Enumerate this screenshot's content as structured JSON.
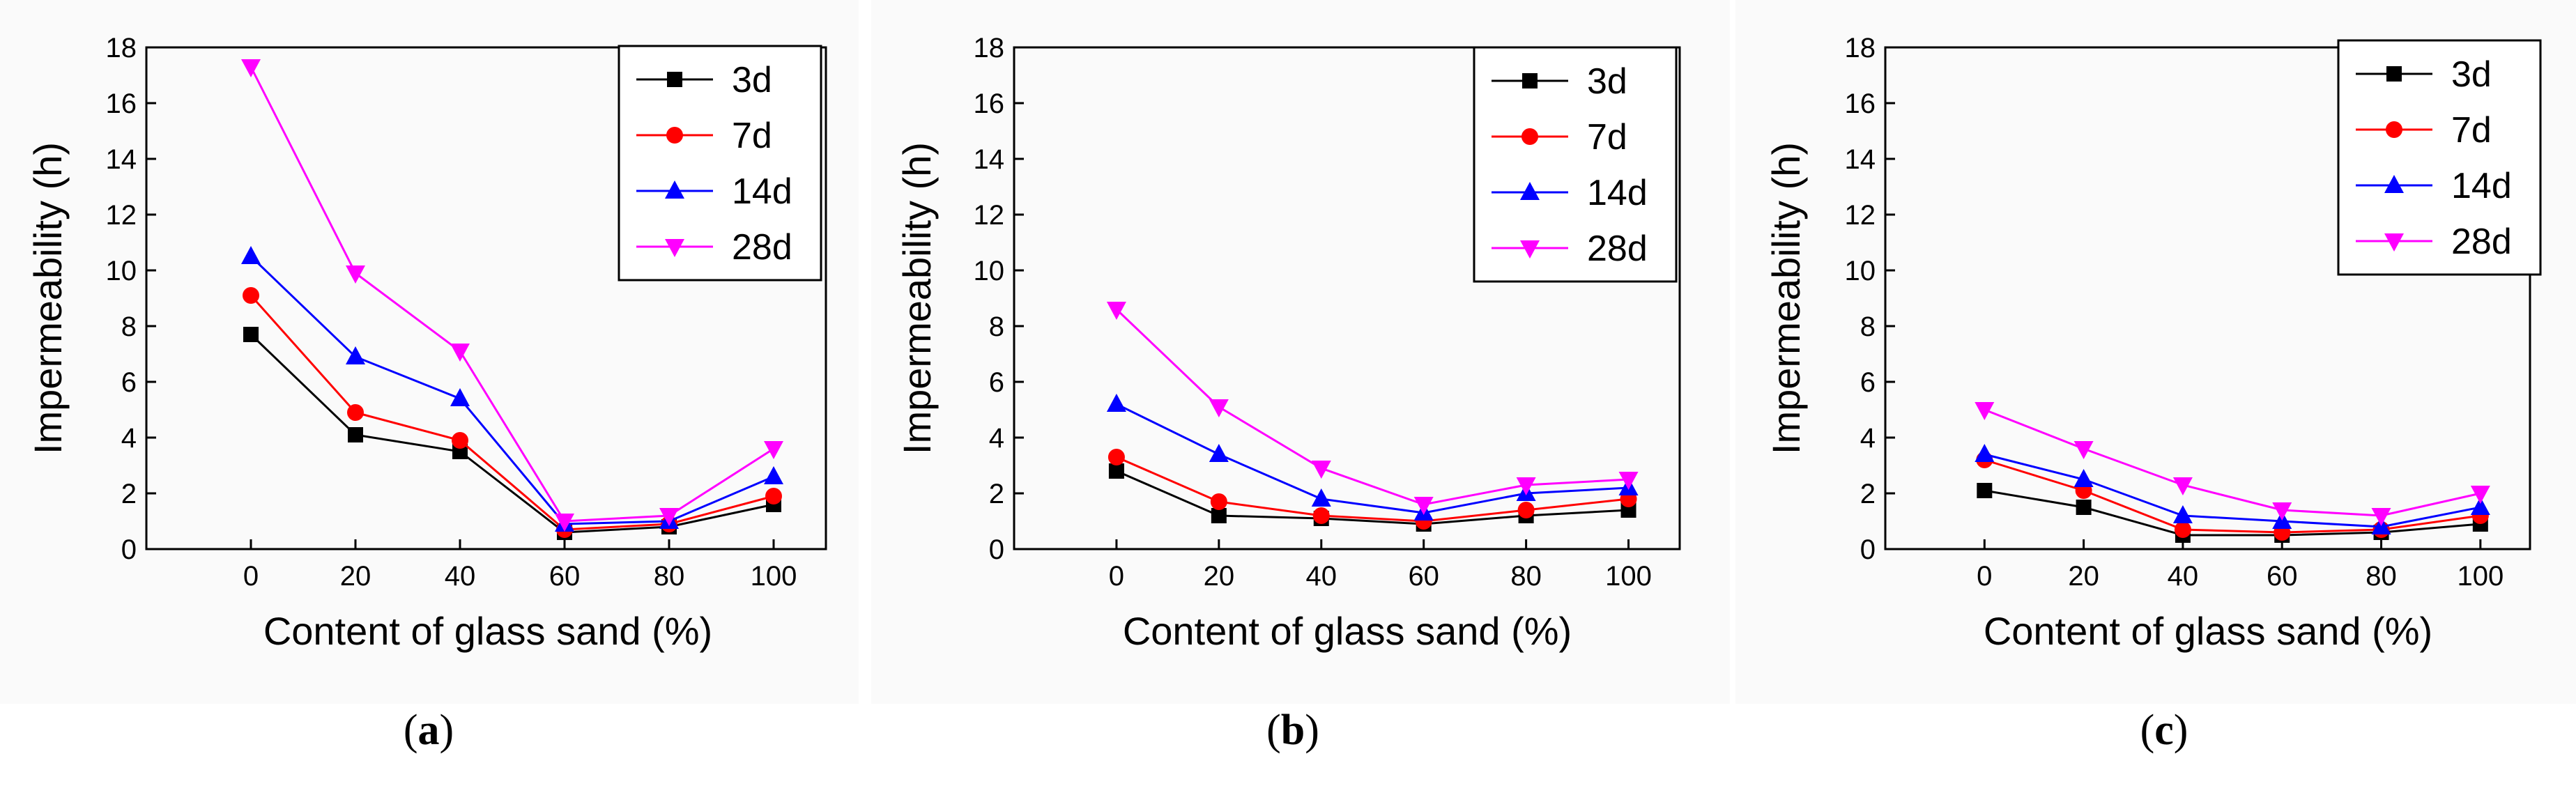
{
  "chart_data": [
    {
      "type": "line",
      "panel_label": "a",
      "xlabel": "Content of glass sand (%)",
      "ylabel": "Impermeability (h)",
      "x": [
        0,
        20,
        40,
        60,
        80,
        100
      ],
      "xlim": [
        -20,
        110
      ],
      "ylim": [
        0,
        18
      ],
      "xticks": [
        0,
        20,
        40,
        60,
        80,
        100
      ],
      "yticks": [
        0,
        2,
        4,
        6,
        8,
        10,
        12,
        14,
        16,
        18
      ],
      "legend_position": "top-right",
      "series": [
        {
          "name": "3d",
          "color": "#000000",
          "marker": "square",
          "values": [
            7.7,
            4.1,
            3.5,
            0.6,
            0.8,
            1.6
          ]
        },
        {
          "name": "7d",
          "color": "#ff0000",
          "marker": "circle",
          "values": [
            9.1,
            4.9,
            3.9,
            0.7,
            0.9,
            1.9
          ]
        },
        {
          "name": "14d",
          "color": "#0000ff",
          "marker": "triangle-up",
          "values": [
            10.5,
            6.9,
            5.4,
            0.9,
            1.0,
            2.6
          ]
        },
        {
          "name": "28d",
          "color": "#ff00ff",
          "marker": "triangle-down",
          "values": [
            17.3,
            9.9,
            7.1,
            1.0,
            1.2,
            3.6
          ]
        }
      ]
    },
    {
      "type": "line",
      "panel_label": "b",
      "xlabel": "Content of glass sand (%)",
      "ylabel": "Impermeability (h)",
      "x": [
        0,
        20,
        40,
        60,
        80,
        100
      ],
      "xlim": [
        -20,
        110
      ],
      "ylim": [
        0,
        18
      ],
      "xticks": [
        0,
        20,
        40,
        60,
        80,
        100
      ],
      "yticks": [
        0,
        2,
        4,
        6,
        8,
        10,
        12,
        14,
        16,
        18
      ],
      "legend_position": "top-right",
      "series": [
        {
          "name": "3d",
          "color": "#000000",
          "marker": "square",
          "values": [
            2.8,
            1.2,
            1.1,
            0.9,
            1.2,
            1.4
          ]
        },
        {
          "name": "7d",
          "color": "#ff0000",
          "marker": "circle",
          "values": [
            3.3,
            1.7,
            1.2,
            1.0,
            1.4,
            1.8
          ]
        },
        {
          "name": "14d",
          "color": "#0000ff",
          "marker": "triangle-up",
          "values": [
            5.2,
            3.4,
            1.8,
            1.3,
            2.0,
            2.2
          ]
        },
        {
          "name": "28d",
          "color": "#ff00ff",
          "marker": "triangle-down",
          "values": [
            8.6,
            5.1,
            2.9,
            1.6,
            2.3,
            2.5
          ]
        }
      ]
    },
    {
      "type": "line",
      "panel_label": "c",
      "xlabel": "Content of glass sand (%)",
      "ylabel": "Impermeability (h)",
      "x": [
        0,
        20,
        40,
        60,
        80,
        100
      ],
      "xlim": [
        -20,
        110
      ],
      "ylim": [
        0,
        18
      ],
      "xticks": [
        0,
        20,
        40,
        60,
        80,
        100
      ],
      "yticks": [
        0,
        2,
        4,
        6,
        8,
        10,
        12,
        14,
        16,
        18
      ],
      "legend_position": "top-right",
      "series": [
        {
          "name": "3d",
          "color": "#000000",
          "marker": "square",
          "values": [
            2.1,
            1.5,
            0.5,
            0.5,
            0.6,
            0.9
          ]
        },
        {
          "name": "7d",
          "color": "#ff0000",
          "marker": "circle",
          "values": [
            3.2,
            2.1,
            0.7,
            0.6,
            0.7,
            1.2
          ]
        },
        {
          "name": "14d",
          "color": "#0000ff",
          "marker": "triangle-up",
          "values": [
            3.4,
            2.5,
            1.2,
            1.0,
            0.8,
            1.5
          ]
        },
        {
          "name": "28d",
          "color": "#ff00ff",
          "marker": "triangle-down",
          "values": [
            5.0,
            3.6,
            2.3,
            1.4,
            1.2,
            2.0
          ]
        }
      ]
    }
  ]
}
